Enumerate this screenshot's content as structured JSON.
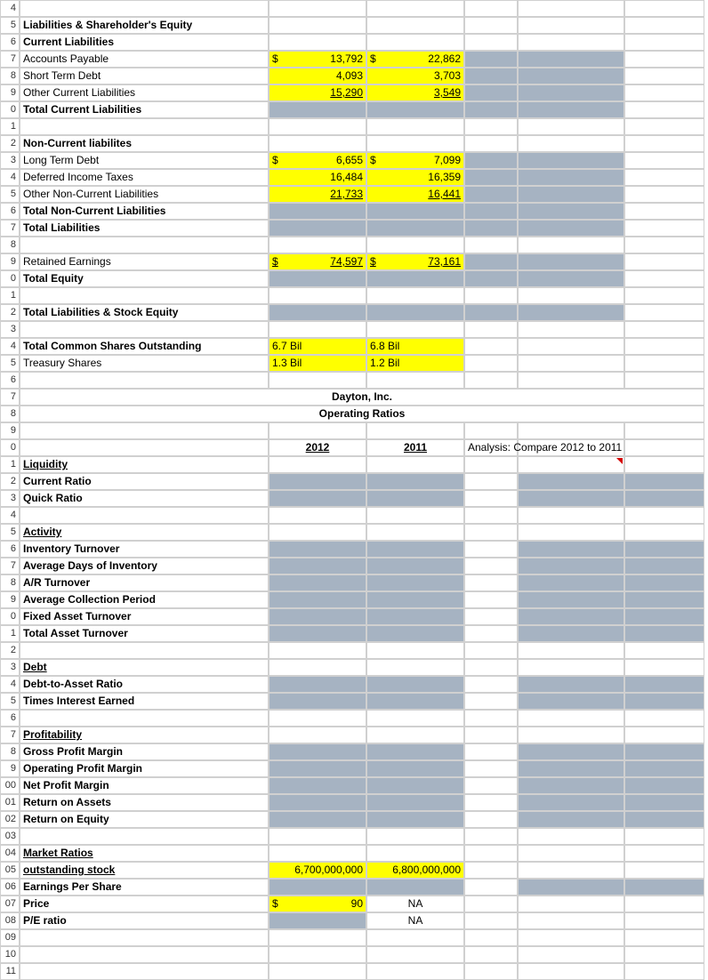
{
  "rows": [
    {
      "n": "4"
    },
    {
      "n": "5",
      "a": {
        "t": "Liabilities & Shareholder's Equity",
        "cls": "bold"
      }
    },
    {
      "n": "6",
      "a": {
        "t": "Current Liabilities",
        "cls": "bold"
      }
    },
    {
      "n": "7",
      "a": {
        "t": "Accounts Payable"
      },
      "b": {
        "t": "13,792",
        "cls": "yellow",
        "dollar": true
      },
      "c": {
        "t": "22,862",
        "cls": "yellow",
        "dollar": true
      },
      "d": {
        "cls": "greycell"
      },
      "e": {
        "cls": "greycell"
      }
    },
    {
      "n": "8",
      "a": {
        "t": "Short Term Debt"
      },
      "b": {
        "t": "4,093",
        "cls": "yellow right"
      },
      "c": {
        "t": "3,703",
        "cls": "yellow right"
      },
      "d": {
        "cls": "greycell"
      },
      "e": {
        "cls": "greycell"
      }
    },
    {
      "n": "9",
      "a": {
        "t": "Other Current Liabilities"
      },
      "b": {
        "t": "15,290",
        "cls": "yellow right underline"
      },
      "c": {
        "t": "3,549",
        "cls": "yellow right underline"
      },
      "d": {
        "cls": "greycell"
      },
      "e": {
        "cls": "greycell"
      }
    },
    {
      "n": "0",
      "a": {
        "t": "Total Current Liabilities",
        "cls": "bold"
      },
      "b": {
        "cls": "greycell"
      },
      "c": {
        "cls": "greycell"
      },
      "d": {
        "cls": "greycell"
      },
      "e": {
        "cls": "greycell"
      }
    },
    {
      "n": "1"
    },
    {
      "n": "2",
      "a": {
        "t": "Non-Current liabilites",
        "cls": "bold"
      }
    },
    {
      "n": "3",
      "a": {
        "t": "Long Term Debt"
      },
      "b": {
        "t": "6,655",
        "cls": "yellow",
        "dollar": true
      },
      "c": {
        "t": "7,099",
        "cls": "yellow",
        "dollar": true
      },
      "d": {
        "cls": "greycell"
      },
      "e": {
        "cls": "greycell"
      }
    },
    {
      "n": "4",
      "a": {
        "t": "Deferred Income Taxes"
      },
      "b": {
        "t": "16,484",
        "cls": "yellow right"
      },
      "c": {
        "t": "16,359",
        "cls": "yellow right"
      },
      "d": {
        "cls": "greycell"
      },
      "e": {
        "cls": "greycell"
      }
    },
    {
      "n": "5",
      "a": {
        "t": "Other Non-Current Liabilities"
      },
      "b": {
        "t": "21,733",
        "cls": "yellow right underline"
      },
      "c": {
        "t": "16,441",
        "cls": "yellow right underline"
      },
      "d": {
        "cls": "greycell"
      },
      "e": {
        "cls": "greycell"
      }
    },
    {
      "n": "6",
      "a": {
        "t": "Total Non-Current Liabilities",
        "cls": "bold"
      },
      "b": {
        "cls": "greycell"
      },
      "c": {
        "cls": "greycell"
      },
      "d": {
        "cls": "greycell"
      },
      "e": {
        "cls": "greycell"
      }
    },
    {
      "n": "7",
      "a": {
        "t": "Total Liabilities",
        "cls": "bold"
      },
      "b": {
        "cls": "greycell"
      },
      "c": {
        "cls": "greycell"
      },
      "d": {
        "cls": "greycell"
      },
      "e": {
        "cls": "greycell"
      }
    },
    {
      "n": "8"
    },
    {
      "n": "9",
      "a": {
        "t": "Retained Earnings"
      },
      "b": {
        "t": "74,597",
        "cls": "yellow underline",
        "dollar": true
      },
      "c": {
        "t": "73,161",
        "cls": "yellow underline",
        "dollar": true
      },
      "d": {
        "cls": "greycell"
      },
      "e": {
        "cls": "greycell"
      }
    },
    {
      "n": "0",
      "a": {
        "t": "Total Equity",
        "cls": "bold"
      },
      "b": {
        "cls": "greycell"
      },
      "c": {
        "cls": "greycell"
      },
      "d": {
        "cls": "greycell"
      },
      "e": {
        "cls": "greycell"
      }
    },
    {
      "n": "1"
    },
    {
      "n": "2",
      "a": {
        "t": "Total Liabilities & Stock Equity",
        "cls": "bold"
      },
      "b": {
        "cls": "greycell"
      },
      "c": {
        "cls": "greycell"
      },
      "d": {
        "cls": "greycell"
      },
      "e": {
        "cls": "greycell"
      }
    },
    {
      "n": "3"
    },
    {
      "n": "4",
      "a": {
        "t": "Total Common Shares Outstanding",
        "cls": "bold"
      },
      "b": {
        "t": "6.7 Bil",
        "cls": "yellow"
      },
      "c": {
        "t": "6.8 Bil",
        "cls": "yellow"
      }
    },
    {
      "n": "5",
      "a": {
        "t": "Treasury Shares"
      },
      "b": {
        "t": "1.3 Bil",
        "cls": "yellow"
      },
      "c": {
        "t": "1.2 Bil",
        "cls": "yellow"
      }
    },
    {
      "n": "6"
    },
    {
      "n": "7",
      "span": {
        "t": "Dayton, Inc.",
        "cls": "bold center"
      }
    },
    {
      "n": "8",
      "span": {
        "t": "Operating Ratios",
        "cls": "bold center"
      }
    },
    {
      "n": "9"
    },
    {
      "n": "0",
      "b": {
        "t": "2012",
        "cls": "bold center underline"
      },
      "c": {
        "t": "2011",
        "cls": "bold center underline"
      },
      "d": {
        "t": "Analysis: Compare  2012 to 2011",
        "overflow": true
      }
    },
    {
      "n": "1",
      "a": {
        "t": "Liquidity",
        "cls": "bold underline"
      },
      "e": {
        "cls": "tri"
      }
    },
    {
      "n": "2",
      "a": {
        "t": "Current Ratio",
        "cls": "bold"
      },
      "b": {
        "cls": "greycell"
      },
      "c": {
        "cls": "greycell"
      },
      "e": {
        "cls": "greycell"
      },
      "f": {
        "cls": "greycell"
      }
    },
    {
      "n": "3",
      "a": {
        "t": "Quick Ratio",
        "cls": "bold"
      },
      "b": {
        "cls": "greycell"
      },
      "c": {
        "cls": "greycell"
      },
      "e": {
        "cls": "greycell"
      },
      "f": {
        "cls": "greycell"
      }
    },
    {
      "n": "4"
    },
    {
      "n": "5",
      "a": {
        "t": "Activity",
        "cls": "bold underline"
      }
    },
    {
      "n": "6",
      "a": {
        "t": "Inventory Turnover",
        "cls": "bold"
      },
      "b": {
        "cls": "greycell"
      },
      "c": {
        "cls": "greycell"
      },
      "e": {
        "cls": "greycell"
      },
      "f": {
        "cls": "greycell"
      }
    },
    {
      "n": "7",
      "a": {
        "t": "Average Days of Inventory",
        "cls": "bold"
      },
      "b": {
        "cls": "greycell"
      },
      "c": {
        "cls": "greycell"
      },
      "e": {
        "cls": "greycell"
      },
      "f": {
        "cls": "greycell"
      }
    },
    {
      "n": "8",
      "a": {
        "t": "A/R Turnover",
        "cls": "bold"
      },
      "b": {
        "cls": "greycell"
      },
      "c": {
        "cls": "greycell"
      },
      "e": {
        "cls": "greycell"
      },
      "f": {
        "cls": "greycell"
      }
    },
    {
      "n": "9",
      "a": {
        "t": "Average Collection Period",
        "cls": "bold"
      },
      "b": {
        "cls": "greycell"
      },
      "c": {
        "cls": "greycell"
      },
      "e": {
        "cls": "greycell"
      },
      "f": {
        "cls": "greycell"
      }
    },
    {
      "n": "0",
      "a": {
        "t": "Fixed Asset Turnover",
        "cls": "bold"
      },
      "b": {
        "cls": "greycell"
      },
      "c": {
        "cls": "greycell"
      },
      "e": {
        "cls": "greycell"
      },
      "f": {
        "cls": "greycell"
      }
    },
    {
      "n": "1",
      "a": {
        "t": "Total Asset Turnover",
        "cls": "bold"
      },
      "b": {
        "cls": "greycell"
      },
      "c": {
        "cls": "greycell"
      },
      "e": {
        "cls": "greycell"
      },
      "f": {
        "cls": "greycell"
      }
    },
    {
      "n": "2"
    },
    {
      "n": "3",
      "a": {
        "t": "Debt",
        "cls": "bold underline"
      }
    },
    {
      "n": "4",
      "a": {
        "t": "Debt-to-Asset Ratio",
        "cls": "bold"
      },
      "b": {
        "cls": "greycell"
      },
      "c": {
        "cls": "greycell"
      },
      "e": {
        "cls": "greycell"
      },
      "f": {
        "cls": "greycell"
      }
    },
    {
      "n": "5",
      "a": {
        "t": "Times Interest Earned",
        "cls": "bold"
      },
      "b": {
        "cls": "greycell"
      },
      "c": {
        "cls": "greycell"
      },
      "e": {
        "cls": "greycell"
      },
      "f": {
        "cls": "greycell"
      }
    },
    {
      "n": "6"
    },
    {
      "n": "7",
      "a": {
        "t": "Profitability",
        "cls": "bold underline"
      }
    },
    {
      "n": "8",
      "a": {
        "t": "Gross Profit Margin",
        "cls": "bold"
      },
      "b": {
        "cls": "greycell"
      },
      "c": {
        "cls": "greycell"
      },
      "e": {
        "cls": "greycell"
      },
      "f": {
        "cls": "greycell"
      }
    },
    {
      "n": "9",
      "a": {
        "t": "Operating Profit Margin",
        "cls": "bold"
      },
      "b": {
        "cls": "greycell"
      },
      "c": {
        "cls": "greycell"
      },
      "e": {
        "cls": "greycell"
      },
      "f": {
        "cls": "greycell"
      }
    },
    {
      "n": "00",
      "a": {
        "t": "Net Profit Margin",
        "cls": "bold"
      },
      "b": {
        "cls": "greycell"
      },
      "c": {
        "cls": "greycell"
      },
      "e": {
        "cls": "greycell"
      },
      "f": {
        "cls": "greycell"
      }
    },
    {
      "n": "01",
      "a": {
        "t": "Return on Assets",
        "cls": "bold"
      },
      "b": {
        "cls": "greycell"
      },
      "c": {
        "cls": "greycell"
      },
      "e": {
        "cls": "greycell"
      },
      "f": {
        "cls": "greycell"
      }
    },
    {
      "n": "02",
      "a": {
        "t": "Return on Equity",
        "cls": "bold"
      },
      "b": {
        "cls": "greycell"
      },
      "c": {
        "cls": "greycell"
      },
      "e": {
        "cls": "greycell"
      },
      "f": {
        "cls": "greycell"
      }
    },
    {
      "n": "03"
    },
    {
      "n": "04",
      "a": {
        "t": "Market Ratios",
        "cls": "bold underline"
      }
    },
    {
      "n": "05",
      "a": {
        "t": "outstanding stock",
        "cls": "bold underline"
      },
      "b": {
        "t": "6,700,000,000",
        "cls": "yellow right"
      },
      "c": {
        "t": "6,800,000,000",
        "cls": "yellow right"
      }
    },
    {
      "n": "06",
      "a": {
        "t": "Earnings Per Share",
        "cls": "bold"
      },
      "b": {
        "cls": "greycell"
      },
      "c": {
        "cls": "greycell"
      },
      "e": {
        "cls": "greycell"
      },
      "f": {
        "cls": "greycell"
      }
    },
    {
      "n": "07",
      "a": {
        "t": "Price",
        "cls": "bold"
      },
      "b": {
        "t": "90",
        "cls": "yellow",
        "dollar": true
      },
      "c": {
        "t": "NA",
        "cls": "center"
      }
    },
    {
      "n": "08",
      "a": {
        "t": "P/E ratio",
        "cls": "bold"
      },
      "b": {
        "cls": "greycell"
      },
      "c": {
        "t": "NA",
        "cls": "center"
      }
    },
    {
      "n": "09"
    },
    {
      "n": "10"
    },
    {
      "n": "11"
    }
  ]
}
